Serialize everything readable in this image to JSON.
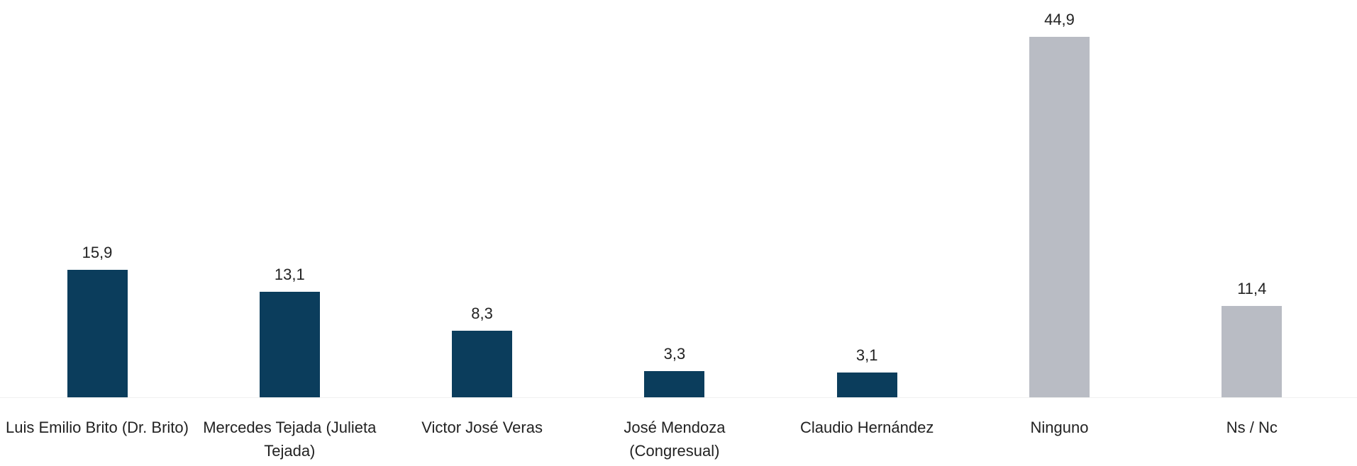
{
  "chart_data": {
    "type": "bar",
    "categories": [
      "Luis Emilio Brito (Dr. Brito)",
      "Mercedes Tejada (Julieta Tejada)",
      "Victor José Veras",
      "José Mendoza (Congresual)",
      "Claudio Hernández",
      "Ninguno",
      "Ns / Nc"
    ],
    "values": [
      15.9,
      13.1,
      8.3,
      3.3,
      3.1,
      44.9,
      11.4
    ],
    "value_labels": [
      "15,9",
      "13,1",
      "8,3",
      "3,3",
      "3,1",
      "44,9",
      "11,4"
    ],
    "colors": [
      "#0b3d5c",
      "#0b3d5c",
      "#0b3d5c",
      "#0b3d5c",
      "#0b3d5c",
      "#b9bcc4",
      "#b9bcc4"
    ]
  }
}
